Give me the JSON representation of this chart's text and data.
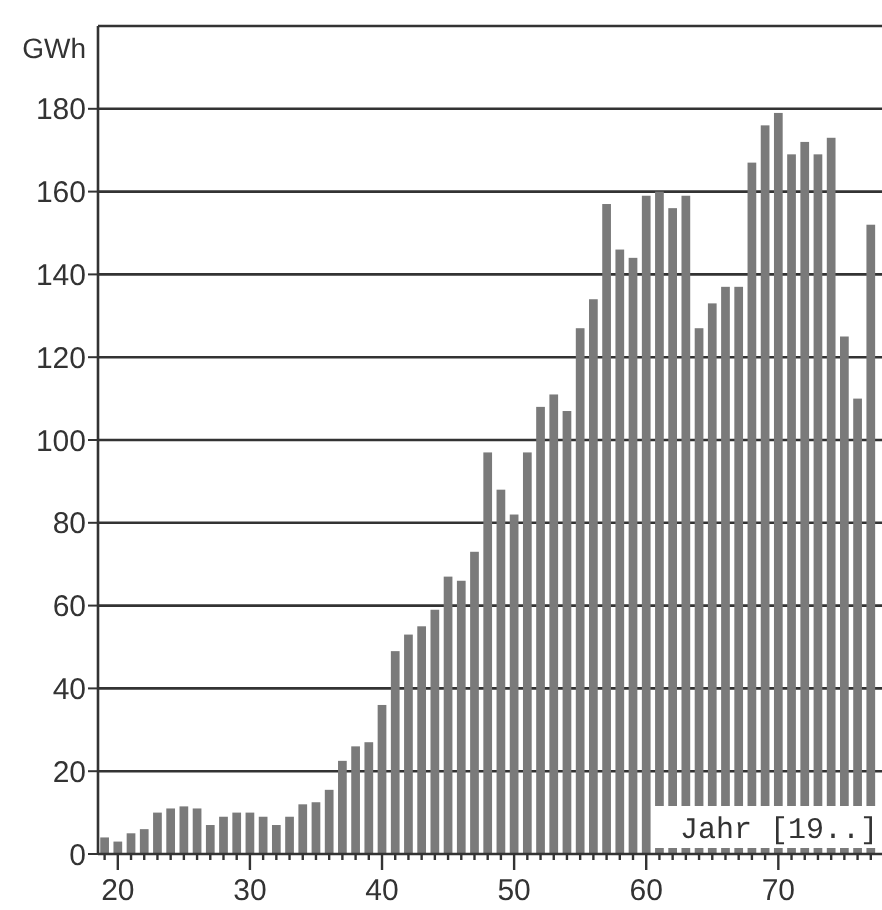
{
  "chart_data": {
    "type": "bar",
    "ylabel": "GWh",
    "xlabel": "Jahr [19..]",
    "color": "#7a7a7a",
    "x": [
      19,
      20,
      21,
      22,
      23,
      24,
      25,
      26,
      27,
      28,
      29,
      30,
      31,
      32,
      33,
      34,
      35,
      36,
      37,
      38,
      39,
      40,
      41,
      42,
      43,
      44,
      45,
      46,
      47,
      48,
      49,
      50,
      51,
      52,
      53,
      54,
      55,
      56,
      57,
      58,
      59,
      60,
      61,
      62,
      63,
      64,
      65,
      66,
      67,
      68,
      69,
      70,
      71,
      72,
      73,
      74,
      75,
      76,
      77
    ],
    "values": [
      4,
      3,
      5,
      6,
      10,
      11,
      11.5,
      11,
      7,
      9,
      10,
      10,
      9,
      7,
      9,
      12,
      12.5,
      15.5,
      22.5,
      26,
      27,
      36,
      49,
      53,
      55,
      59,
      67,
      66,
      73,
      97,
      88,
      82,
      97,
      108,
      111,
      107,
      127,
      134,
      157,
      146,
      144,
      159,
      160,
      156,
      159,
      127,
      133,
      137,
      137,
      167,
      176,
      179,
      169,
      172,
      169,
      173,
      125,
      110,
      152
    ],
    "xlim": [
      18.5,
      78
    ],
    "ylim": [
      0,
      200
    ],
    "yticks": [
      0,
      20,
      40,
      60,
      80,
      100,
      120,
      140,
      160,
      180
    ],
    "xticks": [
      {
        "value": 19,
        "label": null
      },
      20,
      {
        "value": 21,
        "label": null
      },
      {
        "value": 22,
        "label": null
      },
      {
        "value": 23,
        "label": null
      },
      {
        "value": 24,
        "label": null
      },
      {
        "value": 25,
        "label": null
      },
      {
        "value": 26,
        "label": null
      },
      {
        "value": 27,
        "label": null
      },
      {
        "value": 28,
        "label": null
      },
      {
        "value": 29,
        "label": null
      },
      30,
      {
        "value": 31,
        "label": null
      },
      {
        "value": 32,
        "label": null
      },
      {
        "value": 33,
        "label": null
      },
      {
        "value": 34,
        "label": null
      },
      {
        "value": 35,
        "label": null
      },
      {
        "value": 36,
        "label": null
      },
      {
        "value": 37,
        "label": null
      },
      {
        "value": 38,
        "label": null
      },
      {
        "value": 39,
        "label": null
      },
      40,
      {
        "value": 41,
        "label": null
      },
      {
        "value": 42,
        "label": null
      },
      {
        "value": 43,
        "label": null
      },
      {
        "value": 44,
        "label": null
      },
      {
        "value": 45,
        "label": null
      },
      {
        "value": 46,
        "label": null
      },
      {
        "value": 47,
        "label": null
      },
      {
        "value": 48,
        "label": null
      },
      {
        "value": 49,
        "label": null
      },
      50,
      {
        "value": 51,
        "label": null
      },
      {
        "value": 52,
        "label": null
      },
      {
        "value": 53,
        "label": null
      },
      {
        "value": 54,
        "label": null
      },
      {
        "value": 55,
        "label": null
      },
      {
        "value": 56,
        "label": null
      },
      {
        "value": 57,
        "label": null
      },
      {
        "value": 58,
        "label": null
      },
      {
        "value": 59,
        "label": null
      },
      60,
      {
        "value": 61,
        "label": null
      },
      {
        "value": 62,
        "label": null
      },
      {
        "value": 63,
        "label": null
      },
      {
        "value": 64,
        "label": null
      },
      {
        "value": 65,
        "label": null
      },
      {
        "value": 66,
        "label": null
      },
      {
        "value": 67,
        "label": null
      },
      {
        "value": 68,
        "label": null
      },
      {
        "value": 69,
        "label": null
      },
      70,
      {
        "value": 71,
        "label": null
      },
      {
        "value": 72,
        "label": null
      },
      {
        "value": 73,
        "label": null
      },
      {
        "value": 74,
        "label": null
      },
      {
        "value": 75,
        "label": null
      },
      {
        "value": 76,
        "label": null
      },
      {
        "value": 77,
        "label": null
      }
    ],
    "grid": "y"
  }
}
